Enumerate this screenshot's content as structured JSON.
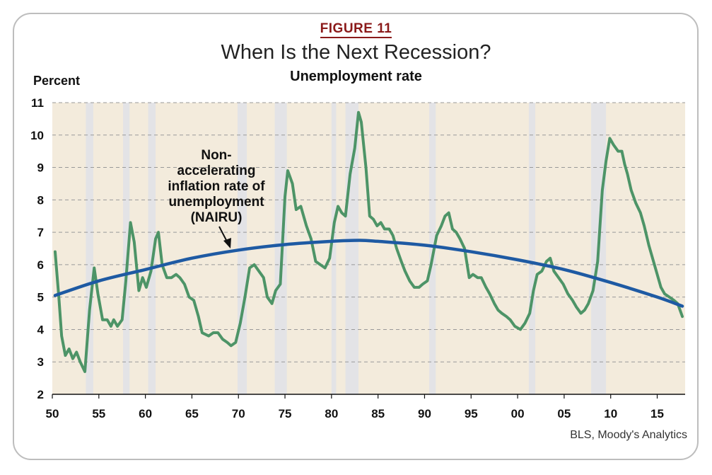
{
  "figure_label": "FIGURE 11",
  "title": "When Is the Next Recession?",
  "subtitle": "Unemployment rate",
  "y_unit_label": "Percent",
  "source": "BLS, Moody's Analytics",
  "annotation": {
    "lines": [
      "Non-",
      "accelerating",
      "inflation rate of",
      "unemployment",
      "(NAIRU)"
    ]
  },
  "colors": {
    "background": "#f3ebdc",
    "recession": "#e3e3e6",
    "unemployment": "#4d9467",
    "nairu": "#1e5aa3",
    "grid": "#999999"
  },
  "chart_data": {
    "type": "line",
    "title": "Unemployment rate",
    "ylabel": "Percent",
    "xlabel": "",
    "xlim": [
      1950,
      2018
    ],
    "ylim": [
      2,
      11
    ],
    "yticks": [
      2,
      3,
      4,
      5,
      6,
      7,
      8,
      9,
      10,
      11
    ],
    "xticks": [
      1950,
      1955,
      1960,
      1965,
      1970,
      1975,
      1980,
      1985,
      1990,
      1995,
      2000,
      2005,
      2010,
      2015
    ],
    "xtick_labels": [
      "50",
      "55",
      "60",
      "65",
      "70",
      "75",
      "80",
      "85",
      "90",
      "95",
      "00",
      "05",
      "10",
      "15"
    ],
    "grid": "horizontal dashed",
    "recessions": [
      [
        1953.6,
        1954.4
      ],
      [
        1957.6,
        1958.3
      ],
      [
        1960.3,
        1961.1
      ],
      [
        1969.9,
        1970.9
      ],
      [
        1973.9,
        1975.2
      ],
      [
        1980.0,
        1980.5
      ],
      [
        1981.5,
        1982.9
      ],
      [
        1990.5,
        1991.2
      ],
      [
        2001.2,
        2001.9
      ],
      [
        2007.9,
        2009.5
      ]
    ],
    "series": [
      {
        "name": "Unemployment rate",
        "points": [
          [
            1950.3,
            6.4
          ],
          [
            1950.7,
            5.0
          ],
          [
            1951.0,
            3.8
          ],
          [
            1951.4,
            3.2
          ],
          [
            1951.8,
            3.4
          ],
          [
            1952.2,
            3.1
          ],
          [
            1952.6,
            3.3
          ],
          [
            1953.0,
            3.0
          ],
          [
            1953.5,
            2.7
          ],
          [
            1954.0,
            4.6
          ],
          [
            1954.5,
            5.9
          ],
          [
            1954.9,
            5.1
          ],
          [
            1955.4,
            4.3
          ],
          [
            1955.9,
            4.3
          ],
          [
            1956.3,
            4.1
          ],
          [
            1956.6,
            4.3
          ],
          [
            1957.0,
            4.1
          ],
          [
            1957.5,
            4.3
          ],
          [
            1957.9,
            5.5
          ],
          [
            1958.4,
            7.3
          ],
          [
            1958.8,
            6.7
          ],
          [
            1959.3,
            5.2
          ],
          [
            1959.7,
            5.6
          ],
          [
            1960.1,
            5.3
          ],
          [
            1960.6,
            5.8
          ],
          [
            1961.1,
            6.8
          ],
          [
            1961.4,
            7.0
          ],
          [
            1961.8,
            6.0
          ],
          [
            1962.3,
            5.6
          ],
          [
            1962.8,
            5.6
          ],
          [
            1963.3,
            5.7
          ],
          [
            1963.7,
            5.6
          ],
          [
            1964.2,
            5.4
          ],
          [
            1964.7,
            5.0
          ],
          [
            1965.2,
            4.9
          ],
          [
            1965.7,
            4.4
          ],
          [
            1966.1,
            3.9
          ],
          [
            1966.8,
            3.8
          ],
          [
            1967.3,
            3.9
          ],
          [
            1967.8,
            3.9
          ],
          [
            1968.3,
            3.7
          ],
          [
            1968.8,
            3.6
          ],
          [
            1969.2,
            3.5
          ],
          [
            1969.7,
            3.6
          ],
          [
            1970.2,
            4.2
          ],
          [
            1970.7,
            5.0
          ],
          [
            1971.2,
            5.9
          ],
          [
            1971.7,
            6.0
          ],
          [
            1972.2,
            5.8
          ],
          [
            1972.7,
            5.6
          ],
          [
            1973.1,
            5.0
          ],
          [
            1973.6,
            4.8
          ],
          [
            1974.0,
            5.2
          ],
          [
            1974.5,
            5.4
          ],
          [
            1975.0,
            8.1
          ],
          [
            1975.3,
            8.9
          ],
          [
            1975.8,
            8.5
          ],
          [
            1976.2,
            7.7
          ],
          [
            1976.7,
            7.8
          ],
          [
            1977.3,
            7.2
          ],
          [
            1977.8,
            6.8
          ],
          [
            1978.3,
            6.1
          ],
          [
            1978.8,
            6.0
          ],
          [
            1979.3,
            5.9
          ],
          [
            1979.8,
            6.2
          ],
          [
            1980.3,
            7.3
          ],
          [
            1980.7,
            7.8
          ],
          [
            1981.1,
            7.6
          ],
          [
            1981.5,
            7.5
          ],
          [
            1982.0,
            8.8
          ],
          [
            1982.5,
            9.6
          ],
          [
            1982.9,
            10.7
          ],
          [
            1983.2,
            10.4
          ],
          [
            1983.7,
            9.0
          ],
          [
            1984.1,
            7.5
          ],
          [
            1984.5,
            7.4
          ],
          [
            1984.9,
            7.2
          ],
          [
            1985.3,
            7.3
          ],
          [
            1985.7,
            7.1
          ],
          [
            1986.2,
            7.1
          ],
          [
            1986.6,
            6.9
          ],
          [
            1987.0,
            6.5
          ],
          [
            1987.5,
            6.1
          ],
          [
            1987.9,
            5.8
          ],
          [
            1988.4,
            5.5
          ],
          [
            1988.9,
            5.3
          ],
          [
            1989.4,
            5.3
          ],
          [
            1989.8,
            5.4
          ],
          [
            1990.3,
            5.5
          ],
          [
            1990.7,
            6.0
          ],
          [
            1991.3,
            6.9
          ],
          [
            1991.8,
            7.2
          ],
          [
            1992.2,
            7.5
          ],
          [
            1992.6,
            7.6
          ],
          [
            1993.0,
            7.1
          ],
          [
            1993.4,
            7.0
          ],
          [
            1993.8,
            6.8
          ],
          [
            1994.3,
            6.5
          ],
          [
            1994.8,
            5.6
          ],
          [
            1995.2,
            5.7
          ],
          [
            1995.7,
            5.6
          ],
          [
            1996.1,
            5.6
          ],
          [
            1996.6,
            5.3
          ],
          [
            1997.0,
            5.1
          ],
          [
            1997.5,
            4.8
          ],
          [
            1997.9,
            4.6
          ],
          [
            1998.3,
            4.5
          ],
          [
            1998.8,
            4.4
          ],
          [
            1999.2,
            4.3
          ],
          [
            1999.7,
            4.1
          ],
          [
            2000.3,
            4.0
          ],
          [
            2000.8,
            4.2
          ],
          [
            2001.3,
            4.5
          ],
          [
            2001.7,
            5.2
          ],
          [
            2002.1,
            5.7
          ],
          [
            2002.6,
            5.8
          ],
          [
            2003.1,
            6.1
          ],
          [
            2003.5,
            6.2
          ],
          [
            2003.9,
            5.8
          ],
          [
            2004.4,
            5.6
          ],
          [
            2004.9,
            5.4
          ],
          [
            2005.4,
            5.1
          ],
          [
            2005.9,
            4.9
          ],
          [
            2006.3,
            4.7
          ],
          [
            2006.8,
            4.5
          ],
          [
            2007.2,
            4.6
          ],
          [
            2007.6,
            4.8
          ],
          [
            2008.1,
            5.2
          ],
          [
            2008.6,
            6.1
          ],
          [
            2009.1,
            8.3
          ],
          [
            2009.5,
            9.2
          ],
          [
            2009.9,
            9.9
          ],
          [
            2010.3,
            9.7
          ],
          [
            2010.8,
            9.5
          ],
          [
            2011.2,
            9.5
          ],
          [
            2011.5,
            9.1
          ],
          [
            2011.8,
            8.8
          ],
          [
            2012.2,
            8.3
          ],
          [
            2012.7,
            7.9
          ],
          [
            2013.2,
            7.6
          ],
          [
            2013.6,
            7.2
          ],
          [
            2014.1,
            6.6
          ],
          [
            2014.6,
            6.1
          ],
          [
            2015.0,
            5.7
          ],
          [
            2015.4,
            5.3
          ],
          [
            2015.8,
            5.1
          ],
          [
            2016.3,
            5.0
          ],
          [
            2016.8,
            4.9
          ],
          [
            2017.2,
            4.8
          ],
          [
            2017.7,
            4.4
          ]
        ]
      },
      {
        "name": "NAIRU",
        "points": [
          [
            1950.3,
            5.05
          ],
          [
            1955,
            5.5
          ],
          [
            1960,
            5.85
          ],
          [
            1965,
            6.2
          ],
          [
            1970,
            6.45
          ],
          [
            1975,
            6.62
          ],
          [
            1980,
            6.72
          ],
          [
            1983,
            6.75
          ],
          [
            1985,
            6.72
          ],
          [
            1990,
            6.6
          ],
          [
            1995,
            6.4
          ],
          [
            2000,
            6.15
          ],
          [
            2005,
            5.85
          ],
          [
            2010,
            5.45
          ],
          [
            2015,
            5.0
          ],
          [
            2017.7,
            4.72
          ]
        ]
      }
    ]
  }
}
